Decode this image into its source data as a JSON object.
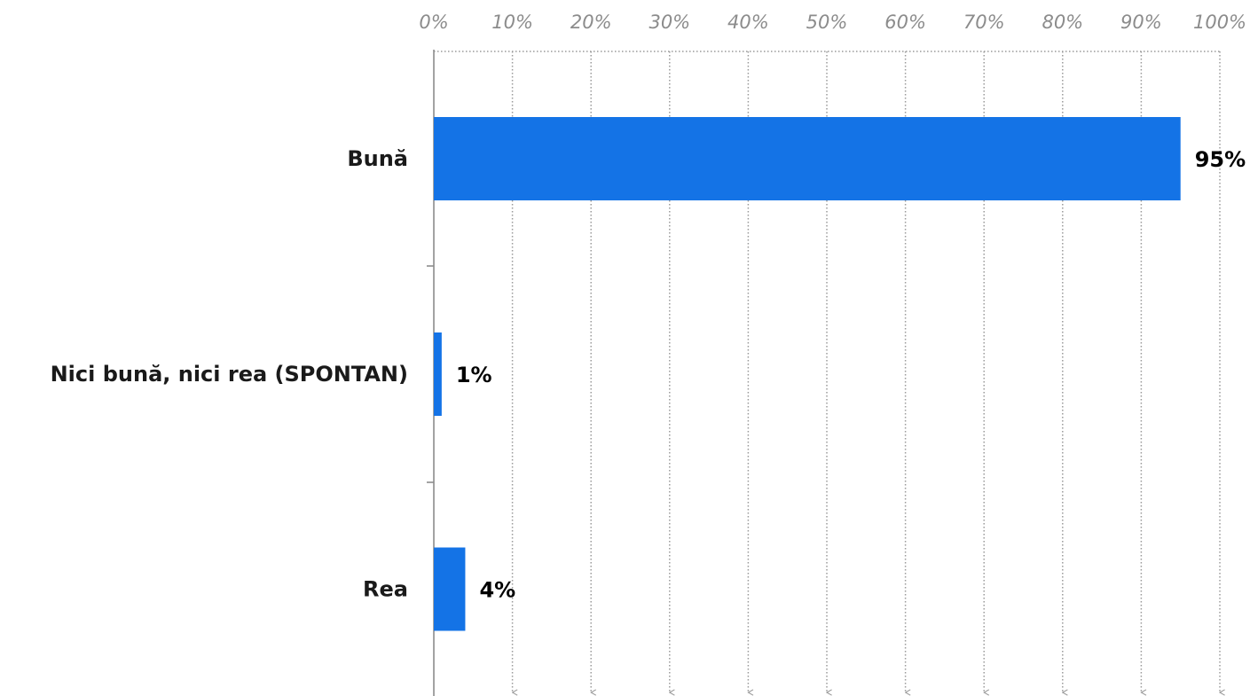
{
  "chart_data": {
    "type": "bar",
    "orientation": "horizontal",
    "categories": [
      "Bună",
      "Nici bună, nici rea (SPONTAN)",
      "Rea"
    ],
    "values": [
      95,
      1,
      4
    ],
    "value_labels": [
      "95%",
      "1%",
      "4%"
    ],
    "xlim": [
      0,
      100
    ],
    "x_ticks": [
      0,
      10,
      20,
      30,
      40,
      50,
      60,
      70,
      80,
      90,
      100
    ],
    "x_tick_labels": [
      "0%",
      "10%",
      "20%",
      "30%",
      "40%",
      "50%",
      "60%",
      "70%",
      "80%",
      "90%",
      "100%"
    ],
    "x_axis_position": "top",
    "grid": true,
    "grid_style": "dotted",
    "legend": "none",
    "bar_color": "#1473e6",
    "grid_color": "#9a9a9a",
    "axis_color": "#8c8c8c"
  }
}
